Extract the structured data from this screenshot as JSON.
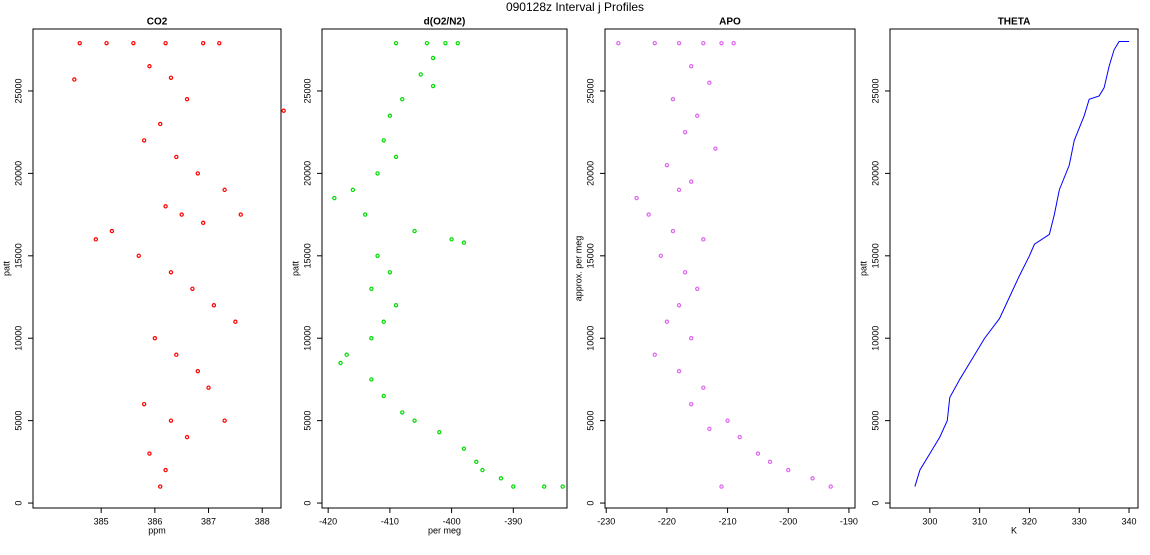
{
  "title": "090128z   Interval j Profiles",
  "chart_data": [
    {
      "type": "scatter",
      "title": "CO2",
      "x_label": "ppm",
      "y_label": "patt",
      "color": "#ff0000",
      "x": [
        384.6,
        385.1,
        385.6,
        386.2,
        386.9,
        387.2,
        385.9,
        386.3,
        386.6,
        386.1,
        385.8,
        386.4,
        386.8,
        387.3,
        386.2,
        386.5,
        386.9,
        387.6,
        385.2,
        384.9,
        385.7,
        386.3,
        386.7,
        387.1,
        387.5,
        386.0,
        386.4,
        386.8,
        387.0,
        385.8,
        386.3,
        386.6,
        387.3,
        385.9,
        386.2,
        386.1,
        388.4,
        384.5
      ],
      "y": [
        27900,
        27900,
        27900,
        27900,
        27900,
        27900,
        26500,
        25800,
        24500,
        23000,
        22000,
        21000,
        20000,
        19000,
        18000,
        17500,
        17000,
        17500,
        16500,
        16000,
        15000,
        14000,
        13000,
        12000,
        11000,
        10000,
        9000,
        8000,
        7000,
        6000,
        5000,
        4000,
        5000,
        3000,
        2000,
        1000,
        23800,
        25700
      ],
      "xlim": [
        383.73,
        388.35
      ],
      "ylim": [
        -300,
        28760
      ],
      "xticks": [
        385,
        386,
        387,
        388
      ],
      "yticks": [
        0,
        5000,
        10000,
        15000,
        20000,
        25000
      ]
    },
    {
      "type": "scatter",
      "title": "d(O2/N2)",
      "x_label": "per meg",
      "y_label": "patt",
      "color": "#00dd00",
      "x": [
        -409,
        -404,
        -401,
        -399,
        -403,
        -405,
        -408,
        -410,
        -411,
        -409,
        -412,
        -416,
        -419,
        -414,
        -406,
        -400,
        -398,
        -412,
        -410,
        -413,
        -409,
        -411,
        -413,
        -417,
        -418,
        -413,
        -411,
        -408,
        -406,
        -402,
        -398,
        -396,
        -392,
        -390,
        -385,
        -382,
        -395,
        -403
      ],
      "y": [
        27900,
        27900,
        27900,
        27900,
        27000,
        26000,
        24500,
        23500,
        22000,
        21000,
        20000,
        19000,
        18500,
        17500,
        16500,
        16000,
        15800,
        15000,
        14000,
        13000,
        12000,
        11000,
        10000,
        9000,
        8500,
        7500,
        6500,
        5500,
        5000,
        4300,
        3300,
        2500,
        1500,
        1000,
        1000,
        1000,
        2000,
        25300
      ],
      "xlim": [
        -421,
        -381.3
      ],
      "ylim": [
        -300,
        28760
      ],
      "xticks": [
        -420,
        -410,
        -400,
        -390
      ],
      "yticks": [
        0,
        5000,
        10000,
        15000,
        20000,
        25000
      ]
    },
    {
      "type": "scatter",
      "title": "APO",
      "y_label": "approx. per meg",
      "color": "#dd66ee",
      "x": [
        -228,
        -222,
        -218,
        -214,
        -211,
        -209,
        -216,
        -213,
        -219,
        -215,
        -217,
        -212,
        -220,
        -216,
        -218,
        -225,
        -223,
        -219,
        -214,
        -221,
        -217,
        -215,
        -218,
        -220,
        -216,
        -222,
        -218,
        -214,
        -216,
        -210,
        -213,
        -208,
        -205,
        -203,
        -200,
        -196,
        -193,
        -211
      ],
      "y": [
        27900,
        27900,
        27900,
        27900,
        27900,
        27900,
        26500,
        25500,
        24500,
        23500,
        22500,
        21500,
        20500,
        19500,
        19000,
        18500,
        17500,
        16500,
        16000,
        15000,
        14000,
        13000,
        12000,
        11000,
        10000,
        9000,
        8000,
        7000,
        6000,
        5000,
        4500,
        4000,
        3000,
        2500,
        2000,
        1500,
        1000,
        1000
      ],
      "xlim": [
        -230.2,
        -189
      ],
      "ylim": [
        -300,
        28760
      ],
      "xticks": [
        -230,
        -220,
        -210,
        -200,
        -190
      ],
      "yticks": [
        0,
        5000,
        10000,
        15000,
        20000,
        25000
      ]
    },
    {
      "type": "line",
      "title": "THETA",
      "x_label": "K",
      "y_label": "patt",
      "color": "#0000ff",
      "x": [
        297,
        298,
        300,
        302,
        303.5,
        304,
        306,
        308,
        311,
        314,
        316,
        318,
        320,
        321,
        324,
        325,
        326,
        328,
        329,
        331,
        332,
        334,
        335,
        336,
        337,
        338,
        340
      ],
      "y": [
        1000,
        2000,
        3000,
        4000,
        5000,
        6400,
        7500,
        8500,
        10000,
        11200,
        12500,
        13800,
        15000,
        15700,
        16300,
        17500,
        19000,
        20500,
        22000,
        23500,
        24500,
        24700,
        25200,
        26500,
        27500,
        28000,
        28000
      ],
      "xlim": [
        292,
        341.8
      ],
      "ylim": [
        -300,
        28760
      ],
      "xticks": [
        300,
        310,
        320,
        330,
        340
      ],
      "yticks": [
        0,
        5000,
        10000,
        15000,
        20000,
        25000
      ]
    }
  ]
}
